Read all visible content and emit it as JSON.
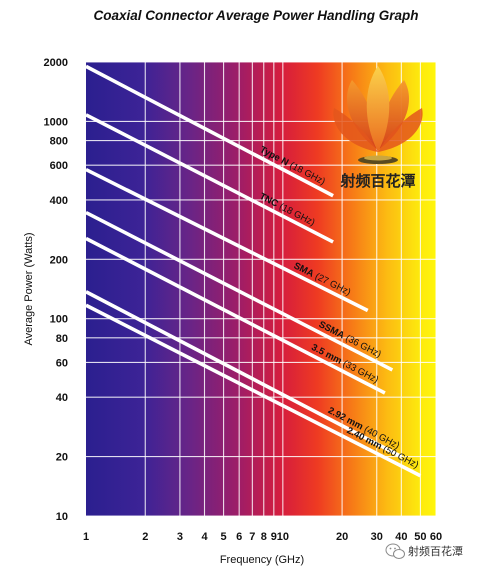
{
  "chart_data": {
    "type": "line",
    "title": "Coaxial Connector Average Power Handling Graph",
    "xlabel": "Frequency (GHz)",
    "ylabel": "Average Power (Watts)",
    "x_scale": "log",
    "y_scale": "log",
    "xlim": [
      1,
      60
    ],
    "ylim": [
      10,
      2000
    ],
    "x_ticks": [
      1,
      2,
      3,
      4,
      5,
      6,
      7,
      8,
      9,
      10,
      20,
      30,
      40,
      50,
      60
    ],
    "x_tick_labels": [
      "1",
      "2",
      "3",
      "4",
      "5",
      "6",
      "7",
      "8",
      "9",
      "10",
      "20",
      "30",
      "40",
      "50",
      "60"
    ],
    "y_ticks": [
      10,
      20,
      40,
      60,
      80,
      100,
      200,
      400,
      600,
      800,
      1000,
      2000
    ],
    "y_tick_labels": [
      "10",
      "20",
      "40",
      "60",
      "80",
      "100",
      "200",
      "400",
      "600",
      "800",
      "1000",
      "2000"
    ],
    "grid": true,
    "series": [
      {
        "name": "Type N",
        "max_freq": "18 GHz",
        "x": [
          1,
          18
        ],
        "y": [
          1900,
          420
        ]
      },
      {
        "name": "TNC",
        "max_freq": "18 GHz",
        "x": [
          1,
          18
        ],
        "y": [
          1080,
          245
        ]
      },
      {
        "name": "SMA",
        "max_freq": "27 GHz",
        "x": [
          1,
          27
        ],
        "y": [
          570,
          110
        ]
      },
      {
        "name": "SSMA",
        "max_freq": "36 GHz",
        "x": [
          1,
          36
        ],
        "y": [
          345,
          55
        ]
      },
      {
        "name": "3.5 mm",
        "max_freq": "33 GHz",
        "x": [
          1,
          33
        ],
        "y": [
          255,
          42
        ]
      },
      {
        "name": "2.92 mm",
        "max_freq": "40 GHz",
        "x": [
          1,
          40
        ],
        "y": [
          137,
          20
        ]
      },
      {
        "name": "2.40 mm",
        "max_freq": "50 GHz",
        "x": [
          1,
          50
        ],
        "y": [
          117,
          16
        ]
      }
    ]
  },
  "logo": {
    "text": "射频百花潭"
  },
  "watermark": {
    "text": "射频百花潭"
  }
}
